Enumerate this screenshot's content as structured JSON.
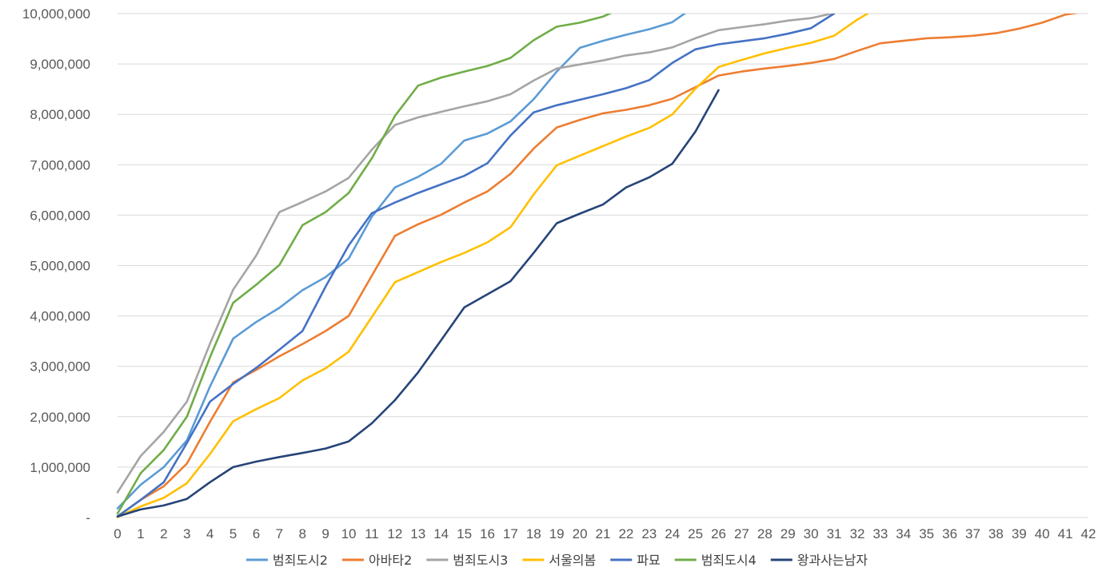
{
  "chart_data": {
    "type": "line",
    "title": "",
    "xlabel": "",
    "ylabel": "",
    "ylim": [
      0,
      10000000
    ],
    "xlim": [
      0,
      42
    ],
    "y_ticks": [
      {
        "value": 0,
        "label": "-"
      },
      {
        "value": 1000000,
        "label": "1,000,000"
      },
      {
        "value": 2000000,
        "label": "2,000,000"
      },
      {
        "value": 3000000,
        "label": "3,000,000"
      },
      {
        "value": 4000000,
        "label": "4,000,000"
      },
      {
        "value": 5000000,
        "label": "5,000,000"
      },
      {
        "value": 6000000,
        "label": "6,000,000"
      },
      {
        "value": 7000000,
        "label": "7,000,000"
      },
      {
        "value": 8000000,
        "label": "8,000,000"
      },
      {
        "value": 9000000,
        "label": "9,000,000"
      },
      {
        "value": 10000000,
        "label": "10,000,000"
      }
    ],
    "x_ticks": [
      "0",
      "1",
      "2",
      "3",
      "4",
      "5",
      "6",
      "7",
      "8",
      "9",
      "10",
      "11",
      "12",
      "13",
      "14",
      "15",
      "16",
      "17",
      "18",
      "19",
      "20",
      "21",
      "22",
      "23",
      "24",
      "25",
      "26",
      "27",
      "28",
      "29",
      "30",
      "31",
      "32",
      "33",
      "34",
      "35",
      "36",
      "37",
      "38",
      "39",
      "40",
      "41",
      "42"
    ],
    "grid": true,
    "legend_position": "bottom",
    "series": [
      {
        "name": "범죄도시2",
        "color": "#5b9bd5",
        "x": [
          0,
          1,
          2,
          3,
          4,
          5,
          6,
          7,
          8,
          9,
          10,
          11,
          12,
          13,
          14,
          15,
          16,
          17,
          18,
          19,
          20,
          21,
          22,
          23,
          24,
          25
        ],
        "values": [
          180000,
          650000,
          1000000,
          1530000,
          2600000,
          3550000,
          3880000,
          4160000,
          4510000,
          4770000,
          5140000,
          5970000,
          6550000,
          6760000,
          7020000,
          7480000,
          7620000,
          7860000,
          8300000,
          8850000,
          9320000,
          9460000,
          9580000,
          9690000,
          9830000,
          10150000
        ]
      },
      {
        "name": "아바타2",
        "color": "#ed7d31",
        "x": [
          0,
          1,
          2,
          3,
          4,
          5,
          6,
          7,
          8,
          9,
          10,
          11,
          12,
          13,
          14,
          15,
          16,
          17,
          18,
          19,
          20,
          21,
          22,
          23,
          24,
          25,
          26,
          27,
          28,
          29,
          30,
          31,
          32,
          33,
          34,
          35,
          36,
          37,
          38,
          39,
          40,
          41,
          42
        ],
        "values": [
          20000,
          350000,
          620000,
          1070000,
          1900000,
          2680000,
          2930000,
          3200000,
          3440000,
          3700000,
          4000000,
          4800000,
          5590000,
          5820000,
          6010000,
          6250000,
          6470000,
          6820000,
          7320000,
          7740000,
          7890000,
          8020000,
          8090000,
          8180000,
          8310000,
          8540000,
          8770000,
          8850000,
          8910000,
          8960000,
          9020000,
          9100000,
          9260000,
          9410000,
          9460000,
          9510000,
          9530000,
          9560000,
          9610000,
          9700000,
          9820000,
          9980000,
          10050000
        ]
      },
      {
        "name": "범죄도시3",
        "color": "#a5a5a5",
        "x": [
          0,
          1,
          2,
          3,
          4,
          5,
          6,
          7,
          8,
          9,
          10,
          11,
          12,
          13,
          14,
          15,
          16,
          17,
          18,
          19,
          20,
          21,
          22,
          23,
          24,
          25,
          26,
          27,
          28,
          29,
          30,
          31
        ],
        "values": [
          500000,
          1220000,
          1700000,
          2300000,
          3450000,
          4520000,
          5200000,
          6060000,
          6260000,
          6470000,
          6740000,
          7300000,
          7790000,
          7940000,
          8050000,
          8160000,
          8260000,
          8400000,
          8670000,
          8910000,
          8990000,
          9070000,
          9170000,
          9230000,
          9330000,
          9510000,
          9670000,
          9730000,
          9790000,
          9860000,
          9910000,
          10010000
        ]
      },
      {
        "name": "서울의봄",
        "color": "#ffc000",
        "x": [
          0,
          1,
          2,
          3,
          4,
          5,
          6,
          7,
          8,
          9,
          10,
          11,
          12,
          13,
          14,
          15,
          16,
          17,
          18,
          19,
          20,
          21,
          22,
          23,
          24,
          25,
          26,
          27,
          28,
          29,
          30,
          31,
          32,
          33
        ],
        "values": [
          10000,
          220000,
          390000,
          680000,
          1260000,
          1910000,
          2150000,
          2370000,
          2720000,
          2960000,
          3290000,
          3980000,
          4670000,
          4870000,
          5070000,
          5250000,
          5460000,
          5760000,
          6410000,
          6990000,
          7180000,
          7370000,
          7560000,
          7730000,
          8000000,
          8510000,
          8940000,
          9080000,
          9210000,
          9320000,
          9420000,
          9560000,
          9880000,
          10150000
        ]
      },
      {
        "name": "파묘",
        "color": "#4472c4",
        "x": [
          0,
          1,
          2,
          3,
          4,
          5,
          6,
          7,
          8,
          9,
          10,
          11,
          12,
          13,
          14,
          15,
          16,
          17,
          18,
          19,
          20,
          21,
          22,
          23,
          24,
          25,
          26,
          27,
          28,
          29,
          30,
          31
        ],
        "values": [
          20000,
          350000,
          700000,
          1480000,
          2300000,
          2650000,
          2970000,
          3330000,
          3700000,
          4580000,
          5400000,
          6040000,
          6250000,
          6440000,
          6610000,
          6780000,
          7030000,
          7580000,
          8040000,
          8180000,
          8290000,
          8400000,
          8520000,
          8680000,
          9020000,
          9290000,
          9390000,
          9450000,
          9510000,
          9600000,
          9710000,
          10000000
        ]
      },
      {
        "name": "범죄도시4",
        "color": "#70ad47",
        "x": [
          0,
          1,
          2,
          3,
          4,
          5,
          6,
          7,
          8,
          9,
          10,
          11,
          12,
          13,
          14,
          15,
          16,
          17,
          18,
          19,
          20,
          21,
          22
        ],
        "values": [
          80000,
          880000,
          1340000,
          2000000,
          3180000,
          4260000,
          4620000,
          5010000,
          5800000,
          6060000,
          6440000,
          7130000,
          7970000,
          8570000,
          8730000,
          8850000,
          8960000,
          9120000,
          9470000,
          9740000,
          9820000,
          9940000,
          10150000
        ]
      },
      {
        "name": "왕과사는남자",
        "color": "#264478",
        "x": [
          0,
          1,
          2,
          3,
          4,
          5,
          6,
          7,
          8,
          9,
          10,
          11,
          12,
          13,
          14,
          15,
          16,
          17,
          18,
          19,
          20,
          21,
          22,
          23,
          24,
          25,
          26
        ],
        "values": [
          20000,
          160000,
          240000,
          370000,
          700000,
          1000000,
          1110000,
          1200000,
          1280000,
          1370000,
          1510000,
          1870000,
          2330000,
          2880000,
          3520000,
          4170000,
          4430000,
          4690000,
          5250000,
          5840000,
          6030000,
          6210000,
          6550000,
          6750000,
          7020000,
          7660000,
          8480000
        ]
      }
    ]
  }
}
